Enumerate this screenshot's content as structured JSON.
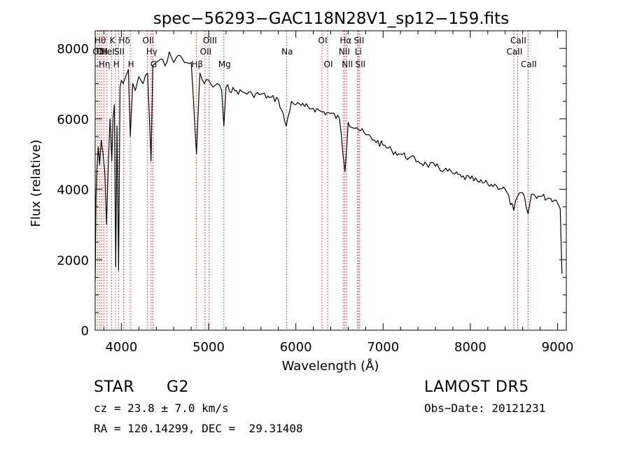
{
  "chart_data": {
    "type": "line",
    "title": "spec−56293−GAC118N28V1_sp12−159.fits",
    "xlabel": "Wavelength (Å)",
    "ylabel": "Flux (relative)",
    "xlim": [
      3700,
      9100
    ],
    "ylim": [
      0,
      8500
    ],
    "xticks": [
      4000,
      5000,
      6000,
      7000,
      8000,
      9000
    ],
    "xtick_labels": [
      "4000",
      "5000",
      "6000",
      "7000",
      "8000",
      "9000"
    ],
    "yticks": [
      0,
      2000,
      4000,
      6000,
      8000
    ],
    "ytick_labels": [
      "0",
      "2000",
      "4000",
      "6000",
      "8000"
    ],
    "grid": false,
    "series": [
      {
        "x": [
          3700,
          3710,
          3720,
          3735,
          3750,
          3770,
          3790,
          3810,
          3830,
          3850,
          3870,
          3890,
          3905,
          3920,
          3935,
          3950,
          3968,
          3985,
          4000,
          4020,
          4050,
          4080,
          4102,
          4130,
          4160,
          4200,
          4250,
          4300,
          4340,
          4360,
          4400,
          4450,
          4500,
          4550,
          4600,
          4650,
          4700,
          4750,
          4800,
          4861,
          4900,
          4950,
          5000,
          5050,
          5100,
          5150,
          5175,
          5200,
          5300,
          5400,
          5500,
          5600,
          5700,
          5800,
          5890,
          5950,
          6000,
          6100,
          6200,
          6300,
          6400,
          6500,
          6563,
          6600,
          6700,
          6800,
          6900,
          7000,
          7100,
          7200,
          7300,
          7400,
          7500,
          7600,
          7700,
          7800,
          7900,
          8000,
          8100,
          8200,
          8300,
          8400,
          8498,
          8542,
          8600,
          8662,
          8700,
          8800,
          8900,
          8980,
          9030,
          9050
        ],
        "y": [
          1400,
          3800,
          4600,
          5200,
          4700,
          5400,
          5000,
          4500,
          3000,
          4700,
          6000,
          4800,
          6000,
          6400,
          1800,
          5800,
          1700,
          6900,
          7100,
          7000,
          7200,
          7400,
          5500,
          7000,
          6800,
          7200,
          7000,
          7300,
          4800,
          7500,
          7600,
          7700,
          7500,
          7900,
          7600,
          7800,
          7700,
          7600,
          7600,
          5000,
          7300,
          7000,
          7100,
          6900,
          7000,
          6800,
          5800,
          6900,
          6800,
          6750,
          6700,
          6700,
          6600,
          6550,
          5800,
          6500,
          6400,
          6350,
          6300,
          6200,
          6150,
          6000,
          4500,
          5900,
          5750,
          5550,
          5400,
          5250,
          5100,
          5000,
          4900,
          4800,
          4700,
          4650,
          4550,
          4450,
          4350,
          4300,
          4200,
          4150,
          4100,
          4000,
          3400,
          3800,
          3900,
          3300,
          3850,
          3800,
          3750,
          3700,
          3450,
          1600
        ]
      }
    ],
    "lines": [
      {
        "x": 3727,
        "label": "OII",
        "row": 2
      },
      {
        "x": 3750,
        "label": "Hθ",
        "row": 1
      },
      {
        "x": 3771,
        "label": "OII",
        "row": 2
      },
      {
        "x": 3798,
        "label": "Hη",
        "row": 3
      },
      {
        "x": 3835,
        "label": "HeI",
        "row": 2
      },
      {
        "x": 3889,
        "label": "K",
        "row": 1
      },
      {
        "x": 3934,
        "label": "H",
        "row": 3
      },
      {
        "x": 3968,
        "label": "SII",
        "row": 2
      },
      {
        "x": 4026,
        "label": "Hδ",
        "row": 1
      },
      {
        "x": 4102,
        "label": "H",
        "row": 3
      },
      {
        "x": 4300,
        "label": "OII",
        "row": 1
      },
      {
        "x": 4340,
        "label": "Hγ",
        "row": 2
      },
      {
        "x": 4363,
        "label": "G",
        "row": 3
      },
      {
        "x": 4861,
        "label": "Hβ",
        "row": 3
      },
      {
        "x": 4959,
        "label": "OII",
        "row": 2
      },
      {
        "x": 5007,
        "label": "OIII",
        "row": 1
      },
      {
        "x": 5175,
        "label": "Mg",
        "row": 3
      },
      {
        "x": 5893,
        "label": "Na",
        "row": 2
      },
      {
        "x": 6300,
        "label": "OI",
        "row": 1
      },
      {
        "x": 6364,
        "label": "OI",
        "row": 3
      },
      {
        "x": 6548,
        "label": "NII",
        "row": 2
      },
      {
        "x": 6563,
        "label": "Hα",
        "row": 1
      },
      {
        "x": 6583,
        "label": "NII",
        "row": 3
      },
      {
        "x": 6708,
        "label": "Li",
        "row": 2
      },
      {
        "x": 6716,
        "label": "SII",
        "row": 1
      },
      {
        "x": 6731,
        "label": "SII",
        "row": 3
      },
      {
        "x": 8498,
        "label": "CaII",
        "row": 2
      },
      {
        "x": 8542,
        "label": "CaII",
        "row": 1
      },
      {
        "x": 8662,
        "label": "CaII",
        "row": 3
      }
    ]
  },
  "info": {
    "class_label": "STAR",
    "subclass_label": "G2",
    "survey": "LAMOST DR5",
    "cz": "cz = 23.8 ± 7.0 km/s",
    "obs_date": "Obs−Date: 20121231",
    "radec": "RA = 120.14299, DEC =  29.31408"
  }
}
